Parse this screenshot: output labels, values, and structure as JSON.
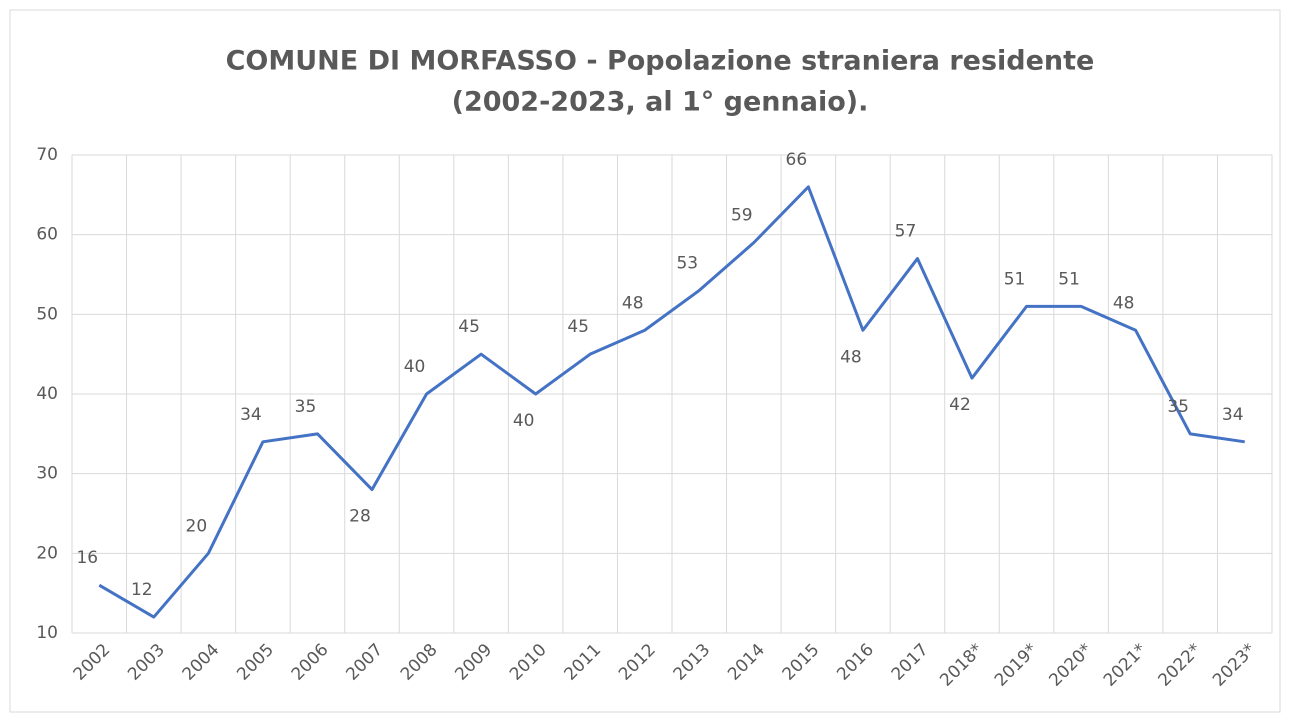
{
  "chart_data": {
    "type": "line",
    "title": [
      "COMUNE DI MORFASSO - Popolazione straniera residente",
      "(2002-2023, al 1° gennaio)."
    ],
    "categories": [
      "2002",
      "2003",
      "2004",
      "2005",
      "2006",
      "2007",
      "2008",
      "2009",
      "2010",
      "2011",
      "2012",
      "2013",
      "2014",
      "2015",
      "2016",
      "2017",
      "2018*",
      "2019*",
      "2020*",
      "2021*",
      "2022*",
      "2023*"
    ],
    "series": [
      {
        "name": "Popolazione straniera",
        "color": "#4472c4",
        "values": [
          16,
          12,
          20,
          34,
          35,
          28,
          40,
          45,
          40,
          45,
          48,
          53,
          59,
          66,
          48,
          57,
          42,
          51,
          51,
          48,
          35,
          34
        ]
      }
    ],
    "ylim": [
      10,
      70
    ],
    "yticks": [
      10,
      20,
      30,
      40,
      50,
      60,
      70
    ],
    "grid": true
  }
}
